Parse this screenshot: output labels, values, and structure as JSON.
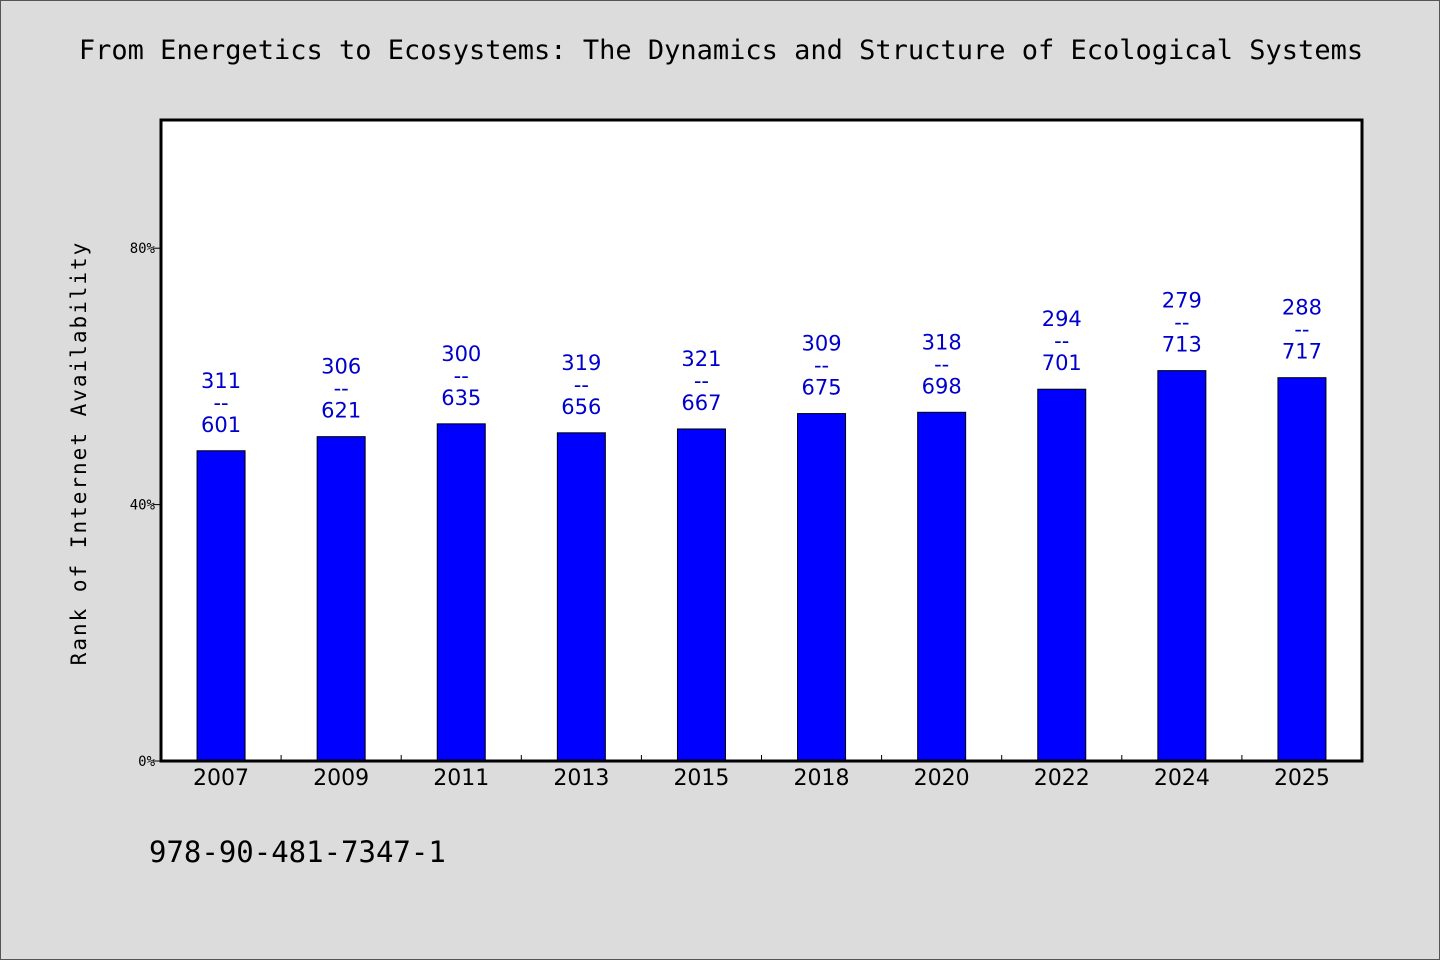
{
  "chart_data": {
    "type": "bar",
    "title": "From Energetics to Ecosystems: The Dynamics and Structure of Ecological Systems",
    "ylabel": "Rank of Internet Availability",
    "xlabel": "",
    "ylim": [
      0,
      100
    ],
    "yticks": [
      0,
      40,
      80
    ],
    "ytick_labels": [
      "0%",
      "40%",
      "80%"
    ],
    "categories": [
      "2007",
      "2009",
      "2011",
      "2013",
      "2015",
      "2018",
      "2020",
      "2022",
      "2024",
      "2025"
    ],
    "values": [
      48.4,
      50.6,
      52.6,
      51.2,
      51.8,
      54.2,
      54.4,
      58.0,
      60.9,
      59.8
    ],
    "data_labels": [
      {
        "top": "311",
        "sep": "--",
        "bottom": "601"
      },
      {
        "top": "306",
        "sep": "--",
        "bottom": "621"
      },
      {
        "top": "300",
        "sep": "--",
        "bottom": "635"
      },
      {
        "top": "319",
        "sep": "--",
        "bottom": "656"
      },
      {
        "top": "321",
        "sep": "--",
        "bottom": "667"
      },
      {
        "top": "309",
        "sep": "--",
        "bottom": "675"
      },
      {
        "top": "318",
        "sep": "--",
        "bottom": "698"
      },
      {
        "top": "294",
        "sep": "--",
        "bottom": "701"
      },
      {
        "top": "279",
        "sep": "--",
        "bottom": "713"
      },
      {
        "top": "288",
        "sep": "--",
        "bottom": "717"
      }
    ],
    "bar_color": "#0000ff",
    "label_color": "#0000cc",
    "grid": false
  },
  "footer": {
    "isbn": "978-90-481-7347-1"
  },
  "colors": {
    "background": "#dcdcdc",
    "plot_background": "#ffffff"
  }
}
